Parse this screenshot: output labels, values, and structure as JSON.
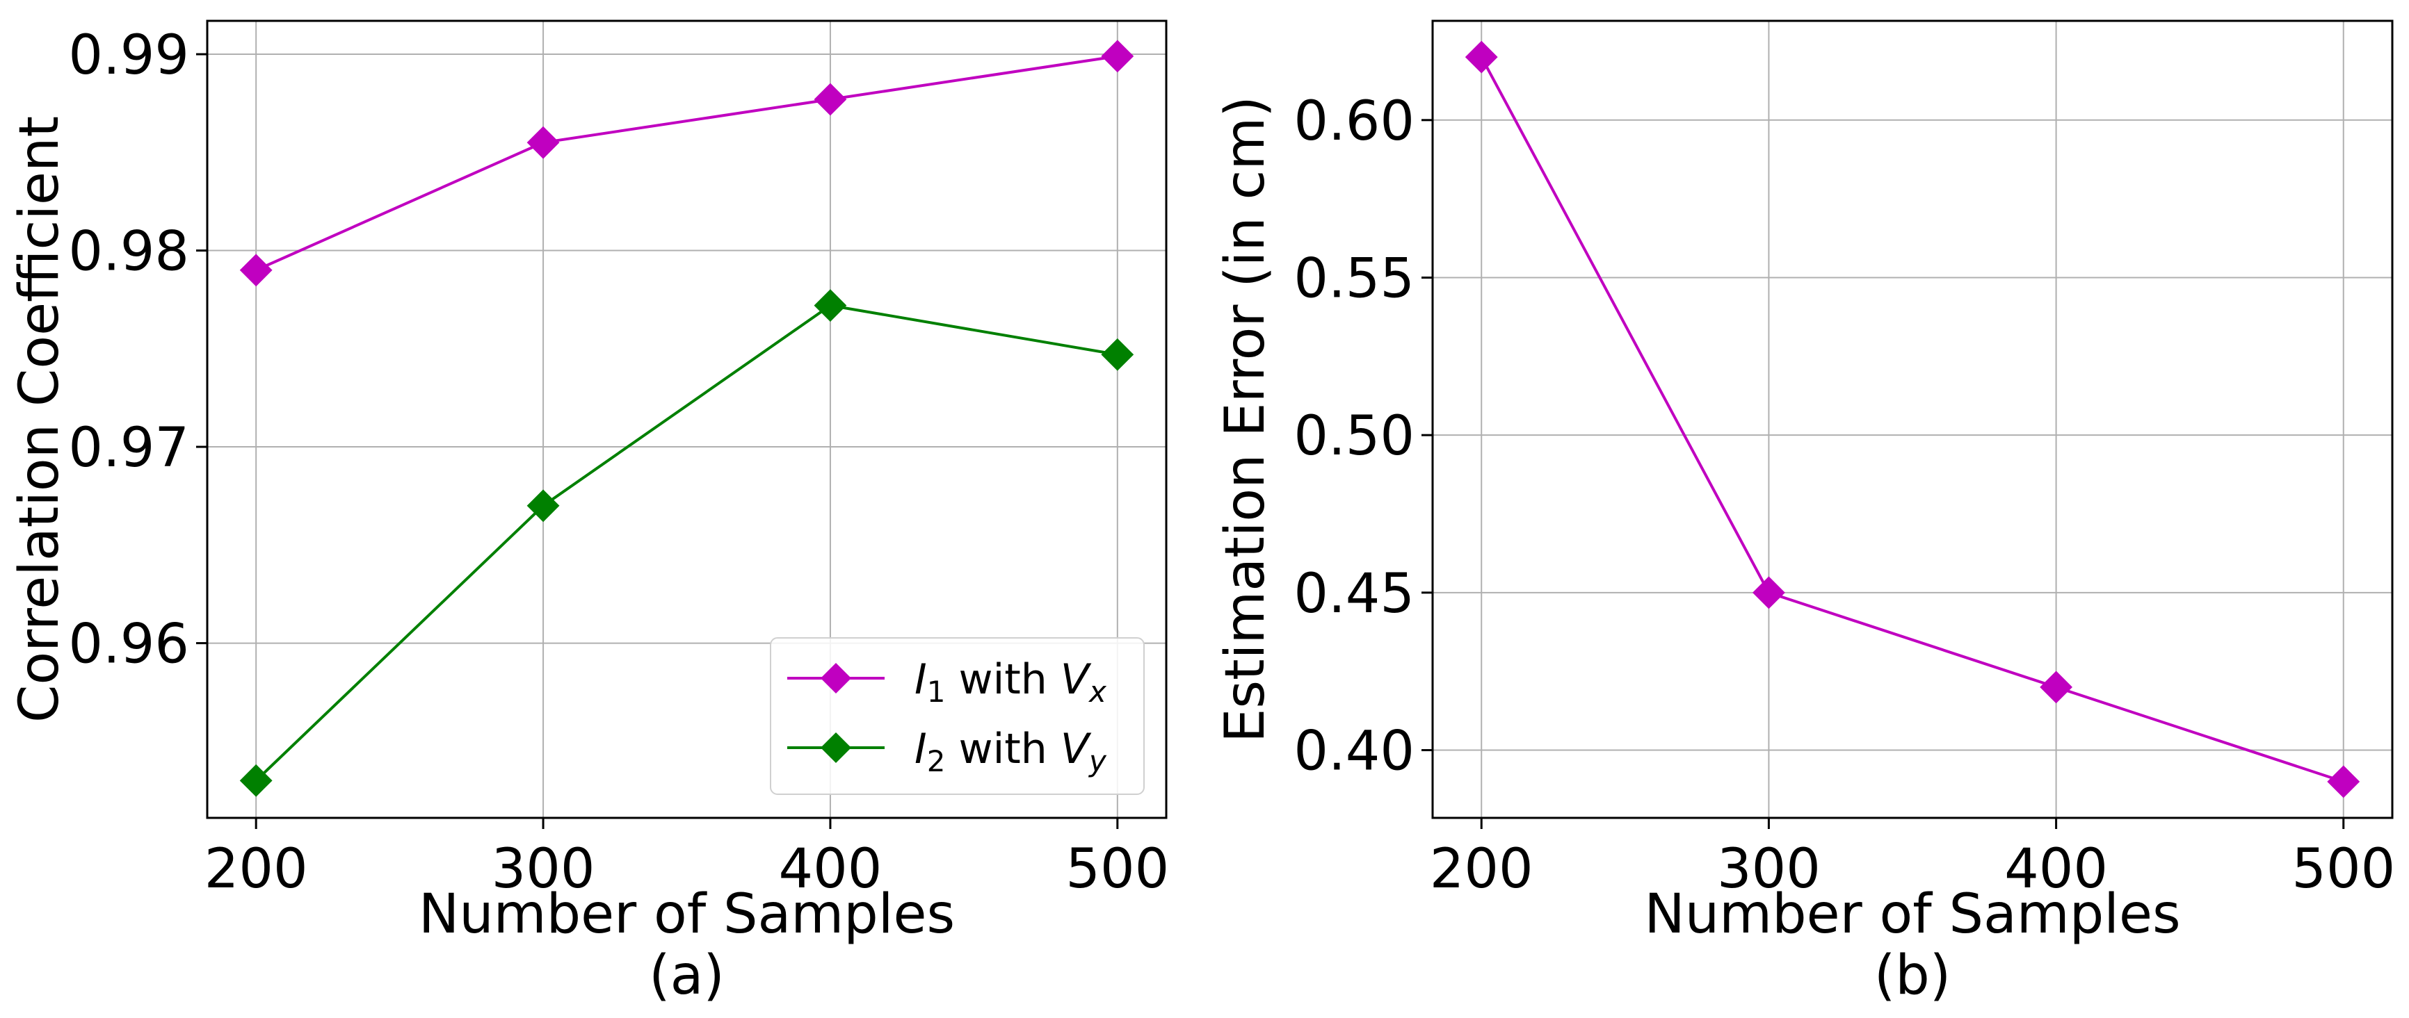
{
  "chart_data": [
    {
      "type": "line",
      "caption": "(a)",
      "xlabel": "Number of Samples",
      "ylabel": "Correlation Coefficient",
      "x": [
        200,
        300,
        400,
        500
      ],
      "x_ticks": [
        200,
        300,
        400,
        500
      ],
      "x_tick_labels": [
        "200",
        "300",
        "400",
        "500"
      ],
      "y_ticks": [
        0.96,
        0.97,
        0.98,
        0.99
      ],
      "y_tick_labels": [
        "0.96",
        "0.97",
        "0.98",
        "0.99"
      ],
      "xlim": [
        183,
        517
      ],
      "ylim": [
        0.9511,
        0.9917
      ],
      "grid": true,
      "legend_position": "lower right",
      "series": [
        {
          "name": "I1 with Vx",
          "legend": [
            "I",
            "1",
            " with ",
            "V",
            "x"
          ],
          "color": "#c000c0",
          "marker": "diamond",
          "values": [
            0.979,
            0.9855,
            0.9877,
            0.9899
          ]
        },
        {
          "name": "I2 with Vy",
          "legend": [
            "I",
            "2",
            " with ",
            "V",
            "y"
          ],
          "color": "#008000",
          "marker": "diamond",
          "values": [
            0.953,
            0.967,
            0.9772,
            0.9747
          ]
        }
      ]
    },
    {
      "type": "line",
      "caption": "(b)",
      "xlabel": "Number of Samples",
      "ylabel": "Estimation Error (in cm)",
      "x": [
        200,
        300,
        400,
        500
      ],
      "x_ticks": [
        200,
        300,
        400,
        500
      ],
      "x_tick_labels": [
        "200",
        "300",
        "400",
        "500"
      ],
      "y_ticks": [
        0.4,
        0.45,
        0.5,
        0.55,
        0.6
      ],
      "y_tick_labels": [
        "0.40",
        "0.45",
        "0.50",
        "0.55",
        "0.60"
      ],
      "xlim": [
        183,
        517
      ],
      "ylim": [
        0.3785,
        0.6315
      ],
      "grid": true,
      "series": [
        {
          "color": "#c000c0",
          "marker": "diamond",
          "values": [
            0.62,
            0.45,
            0.42,
            0.39
          ]
        }
      ]
    }
  ]
}
